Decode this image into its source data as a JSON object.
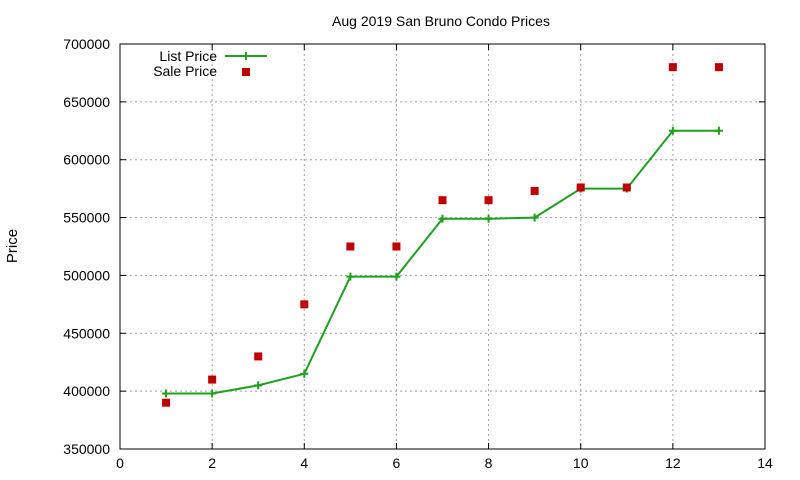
{
  "chart_data": {
    "type": "line",
    "title": "Aug 2019 San Bruno Condo Prices",
    "xlabel": "",
    "ylabel": "Price",
    "xlim": [
      0,
      14
    ],
    "ylim": [
      350000,
      700000
    ],
    "xticks": [
      0,
      2,
      4,
      6,
      8,
      10,
      12,
      14
    ],
    "yticks": [
      350000,
      400000,
      450000,
      500000,
      550000,
      600000,
      650000,
      700000
    ],
    "grid": true,
    "legend_position": "top-left",
    "series": [
      {
        "name": "List Price",
        "style": "lines+points",
        "color": "#1ea01e",
        "x": [
          1,
          2,
          3,
          4,
          5,
          6,
          7,
          8,
          9,
          10,
          11,
          12,
          13
        ],
        "y": [
          398000,
          398000,
          405000,
          415000,
          499000,
          499000,
          549000,
          549000,
          550000,
          575000,
          575000,
          625000,
          625000
        ]
      },
      {
        "name": "Sale Price",
        "style": "points",
        "color": "#c00000",
        "x": [
          1,
          2,
          3,
          4,
          5,
          6,
          7,
          8,
          9,
          10,
          11,
          12,
          13
        ],
        "y": [
          390000,
          410000,
          430000,
          475000,
          525000,
          525000,
          565000,
          565000,
          573000,
          576000,
          576000,
          680000,
          680000
        ]
      }
    ]
  }
}
